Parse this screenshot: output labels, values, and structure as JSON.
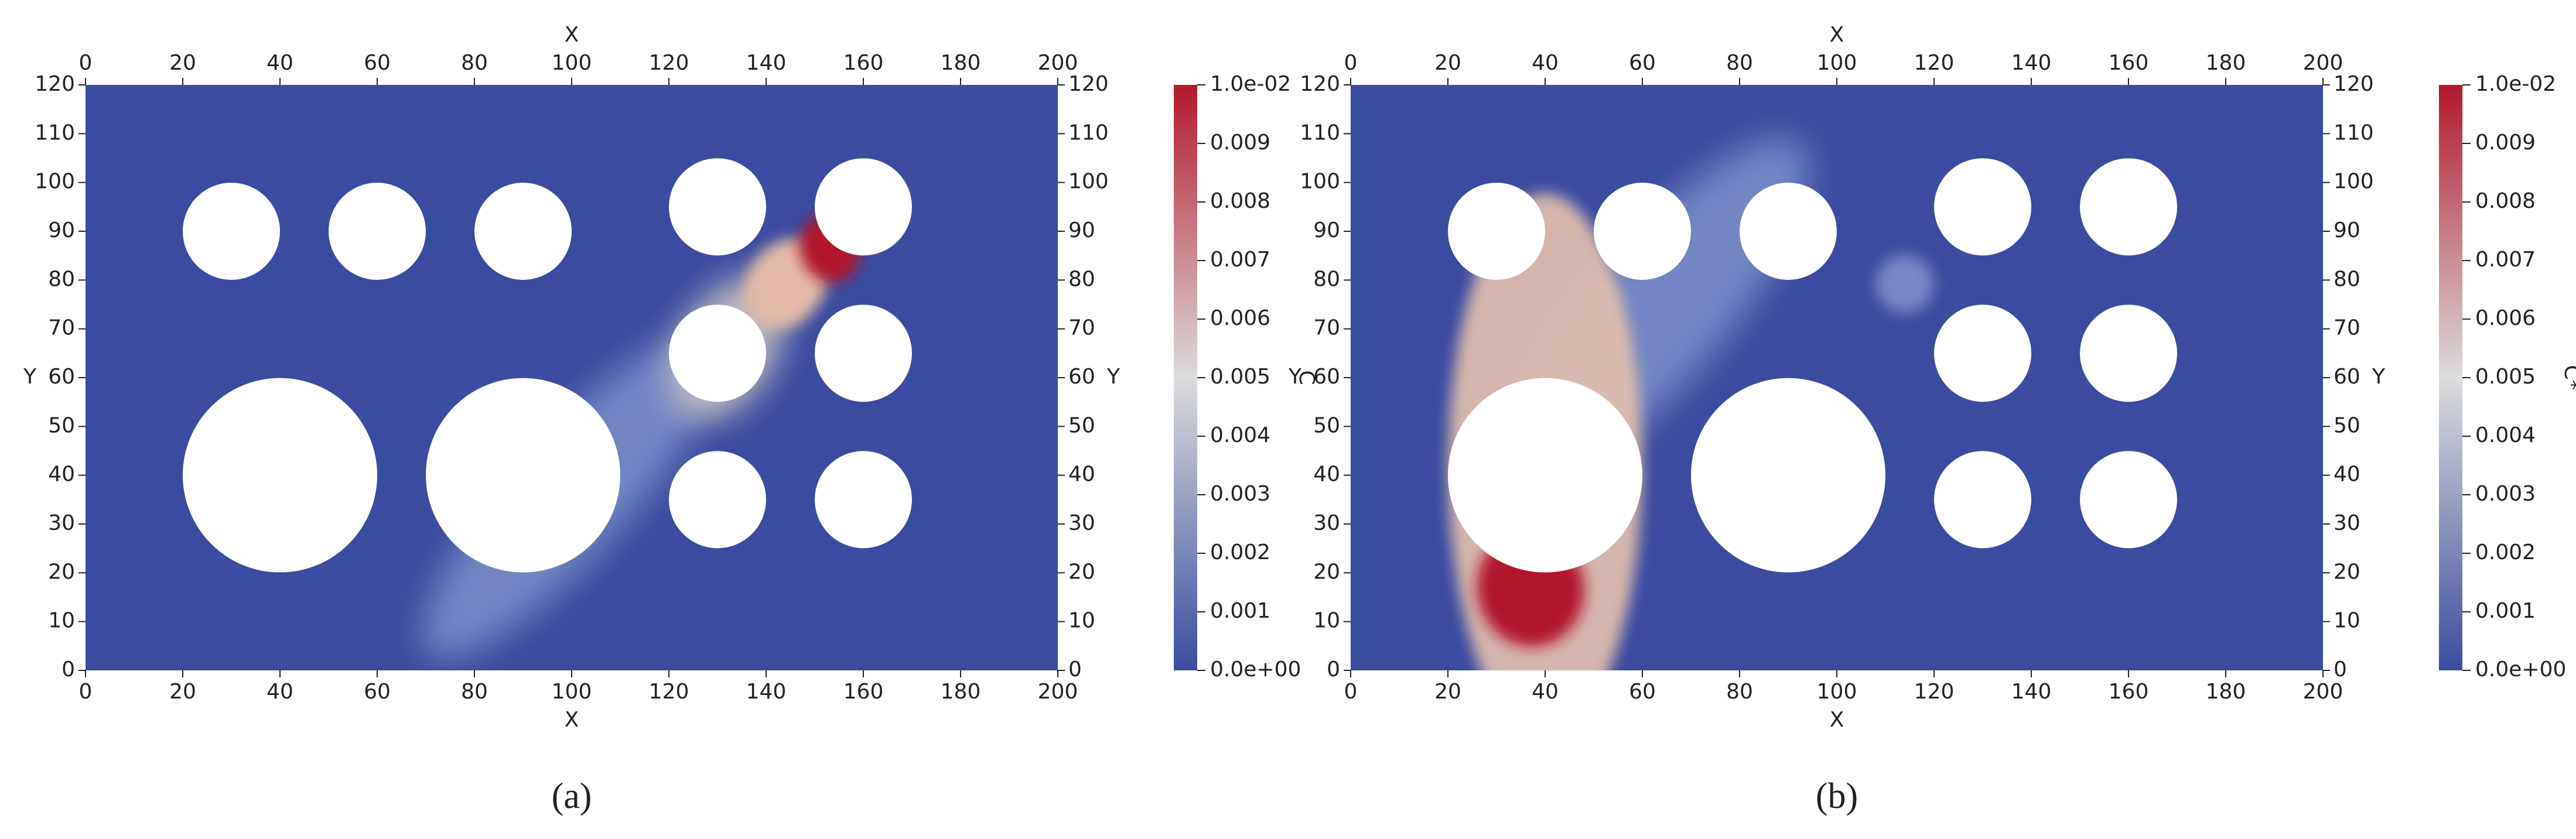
{
  "chart_data": [
    {
      "type": "contour",
      "panel_label": "(a)",
      "xlabel": "X",
      "ylabel": "Y",
      "colorbar_label": "C",
      "xlim": [
        0,
        200
      ],
      "ylim": [
        0,
        120
      ],
      "xticks": [
        0,
        20,
        40,
        60,
        80,
        100,
        120,
        140,
        160,
        180,
        200
      ],
      "yticks": [
        0,
        10,
        20,
        30,
        40,
        50,
        60,
        70,
        80,
        90,
        100,
        110,
        120
      ],
      "colorbar_lim": [
        0,
        0.01
      ],
      "colorbar_ticks": [
        {
          "value": 0,
          "label": "0.0e+00"
        },
        0.001,
        0.002,
        0.003,
        0.004,
        0.005,
        0.006,
        0.007,
        0.008,
        0.009,
        {
          "value": 0.01,
          "label": "1.0e-02"
        }
      ],
      "colormap": [
        "#3a4c9f",
        "#dcdcdc",
        "#b2182b"
      ],
      "obstacles": [
        {
          "cx": 30,
          "cy": 90,
          "r": 10
        },
        {
          "cx": 60,
          "cy": 90,
          "r": 10
        },
        {
          "cx": 90,
          "cy": 90,
          "r": 10
        },
        {
          "cx": 130,
          "cy": 95,
          "r": 10
        },
        {
          "cx": 160,
          "cy": 95,
          "r": 10
        },
        {
          "cx": 130,
          "cy": 65,
          "r": 10
        },
        {
          "cx": 160,
          "cy": 65,
          "r": 10
        },
        {
          "cx": 130,
          "cy": 35,
          "r": 10
        },
        {
          "cx": 160,
          "cy": 35,
          "r": 10
        },
        {
          "cx": 40,
          "cy": 40,
          "r": 20
        },
        {
          "cx": 90,
          "cy": 40,
          "r": 20
        }
      ]
    },
    {
      "type": "contour",
      "panel_label": "(b)",
      "xlabel": "X",
      "ylabel": "Y",
      "colorbar_label": "C*",
      "xlim": [
        0,
        200
      ],
      "ylim": [
        0,
        120
      ],
      "xticks": [
        0,
        20,
        40,
        60,
        80,
        100,
        120,
        140,
        160,
        180,
        200
      ],
      "yticks": [
        0,
        10,
        20,
        30,
        40,
        50,
        60,
        70,
        80,
        90,
        100,
        110,
        120
      ],
      "colorbar_lim": [
        0,
        0.01
      ],
      "colorbar_ticks": [
        {
          "value": 0,
          "label": "0.0e+00"
        },
        0.001,
        0.002,
        0.003,
        0.004,
        0.005,
        0.006,
        0.007,
        0.008,
        0.009,
        {
          "value": 0.01,
          "label": "1.0e-02"
        }
      ],
      "colormap": [
        "#3a4c9f",
        "#dcdcdc",
        "#b2182b"
      ],
      "obstacles": [
        {
          "cx": 30,
          "cy": 90,
          "r": 10
        },
        {
          "cx": 60,
          "cy": 90,
          "r": 10
        },
        {
          "cx": 90,
          "cy": 90,
          "r": 10
        },
        {
          "cx": 130,
          "cy": 95,
          "r": 10
        },
        {
          "cx": 160,
          "cy": 95,
          "r": 10
        },
        {
          "cx": 130,
          "cy": 65,
          "r": 10
        },
        {
          "cx": 160,
          "cy": 65,
          "r": 10
        },
        {
          "cx": 130,
          "cy": 35,
          "r": 10
        },
        {
          "cx": 160,
          "cy": 35,
          "r": 10
        },
        {
          "cx": 40,
          "cy": 40,
          "r": 20
        },
        {
          "cx": 90,
          "cy": 40,
          "r": 20
        }
      ]
    }
  ]
}
